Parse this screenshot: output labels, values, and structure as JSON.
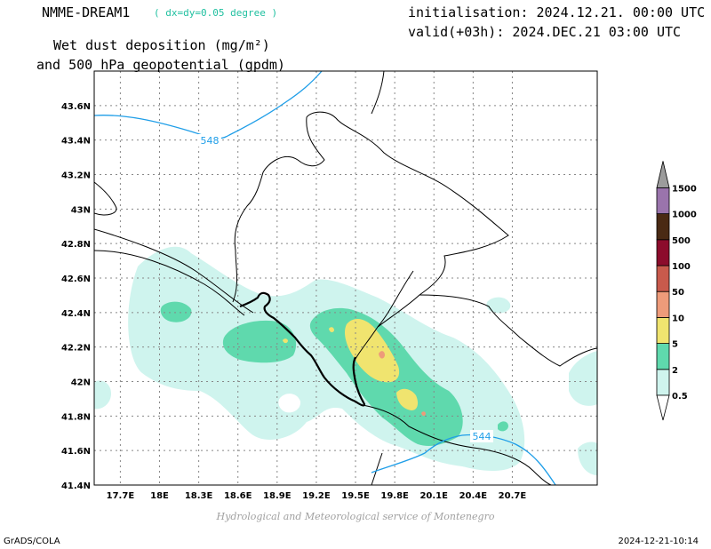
{
  "header": {
    "model_name": "NMME-DREAM1",
    "resolution": "( dx=dy=0.05 degree )",
    "variable_line1": "Wet dust deposition (mg/m²)",
    "variable_line2": "and 500 hPa geopotential (gpdm)",
    "init_time": "initialisation: 2024.12.21. 00:00 UTC",
    "valid_time": "valid(+03h): 2024.DEC.21 03:00 UTC"
  },
  "map": {
    "lat_ticks": [
      "43.6N",
      "43.4N",
      "43.2N",
      "43N",
      "42.8N",
      "42.6N",
      "42.4N",
      "42.2N",
      "42N",
      "41.8N",
      "41.6N",
      "41.4N"
    ],
    "lon_ticks": [
      "17.7E",
      "18E",
      "18.3E",
      "18.6E",
      "18.9E",
      "19.2E",
      "19.5E",
      "19.8E",
      "20.1E",
      "20.4E",
      "20.7E"
    ],
    "lat_range": [
      41.4,
      43.8
    ],
    "lon_range": [
      17.5,
      21.35
    ],
    "contours": [
      {
        "label": "548",
        "color": "#1f9ee8"
      },
      {
        "label": "544",
        "color": "#1f9ee8"
      }
    ]
  },
  "legend": {
    "levels": [
      "0.5",
      "2",
      "5",
      "10",
      "50",
      "100",
      "500",
      "1000",
      "1500"
    ],
    "colors": [
      "#cff4ee",
      "#5fd9ad",
      "#f0e46f",
      "#ee9b7a",
      "#c85a4c",
      "#8c0c2c",
      "#4a2a14",
      "#9a74ac",
      "#9c9c9c"
    ]
  },
  "footer": {
    "credit": "Hydrological and Meteorological service of Montenegro",
    "software": "GrADS/COLA",
    "timestamp": "2024-12-21-10:14"
  }
}
